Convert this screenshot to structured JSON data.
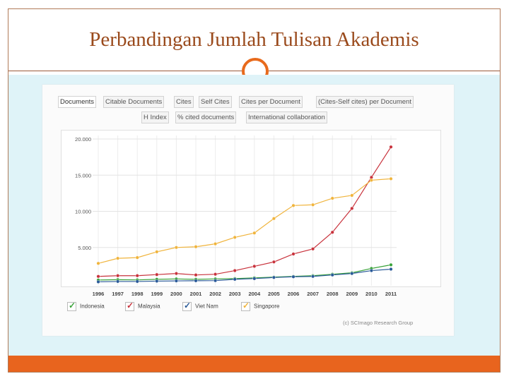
{
  "slide": {
    "title": "Perbandingan Jumlah Tulisan Akademis"
  },
  "tabs_row1": [
    "Documents",
    "Citable Documents",
    "Cites",
    "Self Cites",
    "Cites per Document",
    "(Cites-Self cites) per Document"
  ],
  "tabs_row2": [
    "H Index",
    "% cited documents",
    "International collaboration"
  ],
  "active_tab": "Documents",
  "credit": "(c) SCImago Research Group",
  "colors": {
    "accent": "#e8641e",
    "title": "#9a4a1c",
    "content_bg": "#dff3f8"
  },
  "chart_data": {
    "type": "line",
    "x": [
      "1996",
      "1997",
      "1998",
      "1999",
      "2000",
      "2001",
      "2002",
      "2003",
      "2004",
      "2005",
      "2006",
      "2007",
      "2008",
      "2009",
      "2010",
      "2011"
    ],
    "y_ticks": [
      "20.000",
      "15.000",
      "10.000",
      "5.000"
    ],
    "ylim": [
      0,
      20000
    ],
    "grid": true,
    "legend_position": "bottom",
    "series": [
      {
        "name": "Indonesia",
        "color": "#3aa33a",
        "values": [
          500,
          550,
          520,
          600,
          650,
          600,
          650,
          700,
          800,
          900,
          1000,
          1100,
          1300,
          1500,
          2100,
          2600
        ]
      },
      {
        "name": "Malaysia",
        "color": "#c8323c",
        "values": [
          1000,
          1100,
          1100,
          1250,
          1400,
          1200,
          1300,
          1800,
          2400,
          3000,
          4100,
          4800,
          7100,
          10400,
          14700,
          18900
        ]
      },
      {
        "name": "Viet Nam",
        "color": "#2a5a98",
        "values": [
          250,
          300,
          300,
          350,
          380,
          400,
          420,
          600,
          700,
          850,
          950,
          1000,
          1200,
          1400,
          1800,
          2000
        ]
      },
      {
        "name": "Singapore",
        "color": "#f0b43c",
        "values": [
          2800,
          3500,
          3600,
          4400,
          5000,
          5100,
          5500,
          6400,
          7000,
          9000,
          10800,
          10900,
          11800,
          12200,
          14300,
          14500
        ]
      }
    ]
  }
}
